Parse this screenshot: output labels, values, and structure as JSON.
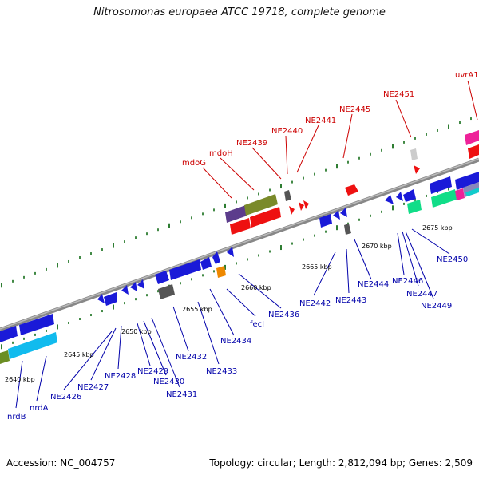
{
  "title": "Nitrosomonas europaea ATCC 19718, complete genome",
  "footer": {
    "accession": "Accession: NC_004757",
    "summary": "Topology: circular; Length: 2,812,094 bp; Genes: 2,509"
  },
  "colors": {
    "backbone": "#888888",
    "tick_dots": "#2e7d32",
    "label_top": "#cc0000",
    "label_bottom": "#0000aa"
  },
  "scale_labels": [
    "2640 kbp",
    "2645 kbp",
    "2650 kbp",
    "2655 kbp",
    "2660 kbp",
    "2665 kbp",
    "2670 kbp",
    "2675 kbp"
  ],
  "genes_top": [
    "mdoG",
    "mdoH",
    "NE2439",
    "NE2440",
    "NE2441",
    "NE2445",
    "NE2451",
    "uvrA1"
  ],
  "genes_bottom": [
    "nrdB",
    "nrdA",
    "NE2426",
    "NE2427",
    "NE2428",
    "NE2429",
    "NE2430",
    "NE2431",
    "NE2432",
    "NE2433",
    "NE2434",
    "fecI",
    "NE2436",
    "NE2442",
    "NE2443",
    "NE2444",
    "NE2446",
    "NE2447",
    "NE2449",
    "NE2450"
  ]
}
